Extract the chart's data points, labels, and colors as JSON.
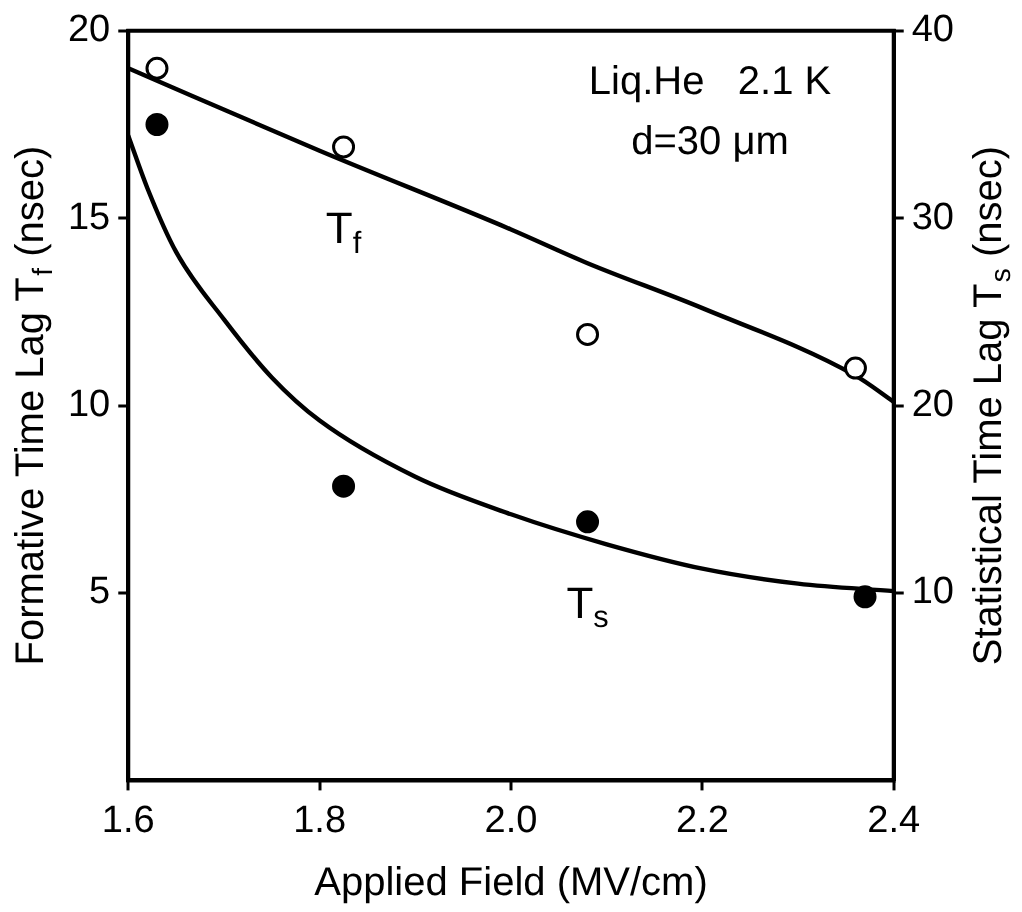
{
  "chart_data": {
    "type": "scatter",
    "xlabel": "Applied Field (MV/cm)",
    "ylabel": "Formative Time Lag T$_{f}$ (nsec)",
    "y2label": "Statistical Time Lag T$_{s}$ (nsec)",
    "annotations": [
      "Liq.He   2.1 K",
      "d=30 μm"
    ],
    "xlim": [
      1.6,
      2.4
    ],
    "xticks": [
      1.6,
      1.8,
      {
        "value": 2.0,
        "label": "2.0"
      },
      2.2,
      2.4
    ],
    "ylim": [
      0,
      20
    ],
    "yticks": [
      5,
      10,
      15,
      20
    ],
    "y2lim": [
      0,
      40
    ],
    "y2ticks": [
      10,
      20,
      30,
      40
    ],
    "grid": false,
    "legend": false,
    "series": [
      {
        "name": "T$_{f}$",
        "color": "#000000",
        "marker": "circle",
        "x": [
          1.63,
          1.825,
          2.08,
          2.36
        ],
        "values": [
          19.0,
          16.9,
          11.9,
          11.0
        ]
      },
      {
        "name": "T$_{s}$",
        "color": "#000000",
        "marker": "circle",
        "axis": "y2",
        "x": [
          1.63,
          1.825,
          2.08,
          2.37
        ],
        "values": [
          35,
          15.7,
          13.8,
          9.8
        ]
      },
      {
        "type": "line",
        "color": "#000000",
        "marker": "none",
        "x": [
          1.6,
          1.8,
          2.0,
          2.08,
          2.2,
          2.36,
          2.4
        ],
        "values": [
          19.0,
          16.8,
          14.7,
          13.8,
          12.6,
          10.8,
          10.1
        ]
      },
      {
        "type": "line",
        "color": "#000000",
        "marker": "none",
        "axis": "y2",
        "x": [
          1.6,
          1.62,
          1.65,
          1.7,
          1.75,
          1.8,
          1.9,
          2.0,
          2.1,
          2.2,
          2.3,
          2.4
        ],
        "values": [
          34.4,
          31.6,
          28.2,
          24.6,
          21.5,
          19.2,
          16.2,
          14.2,
          12.6,
          11.3,
          10.5,
          10.1
        ]
      }
    ]
  }
}
